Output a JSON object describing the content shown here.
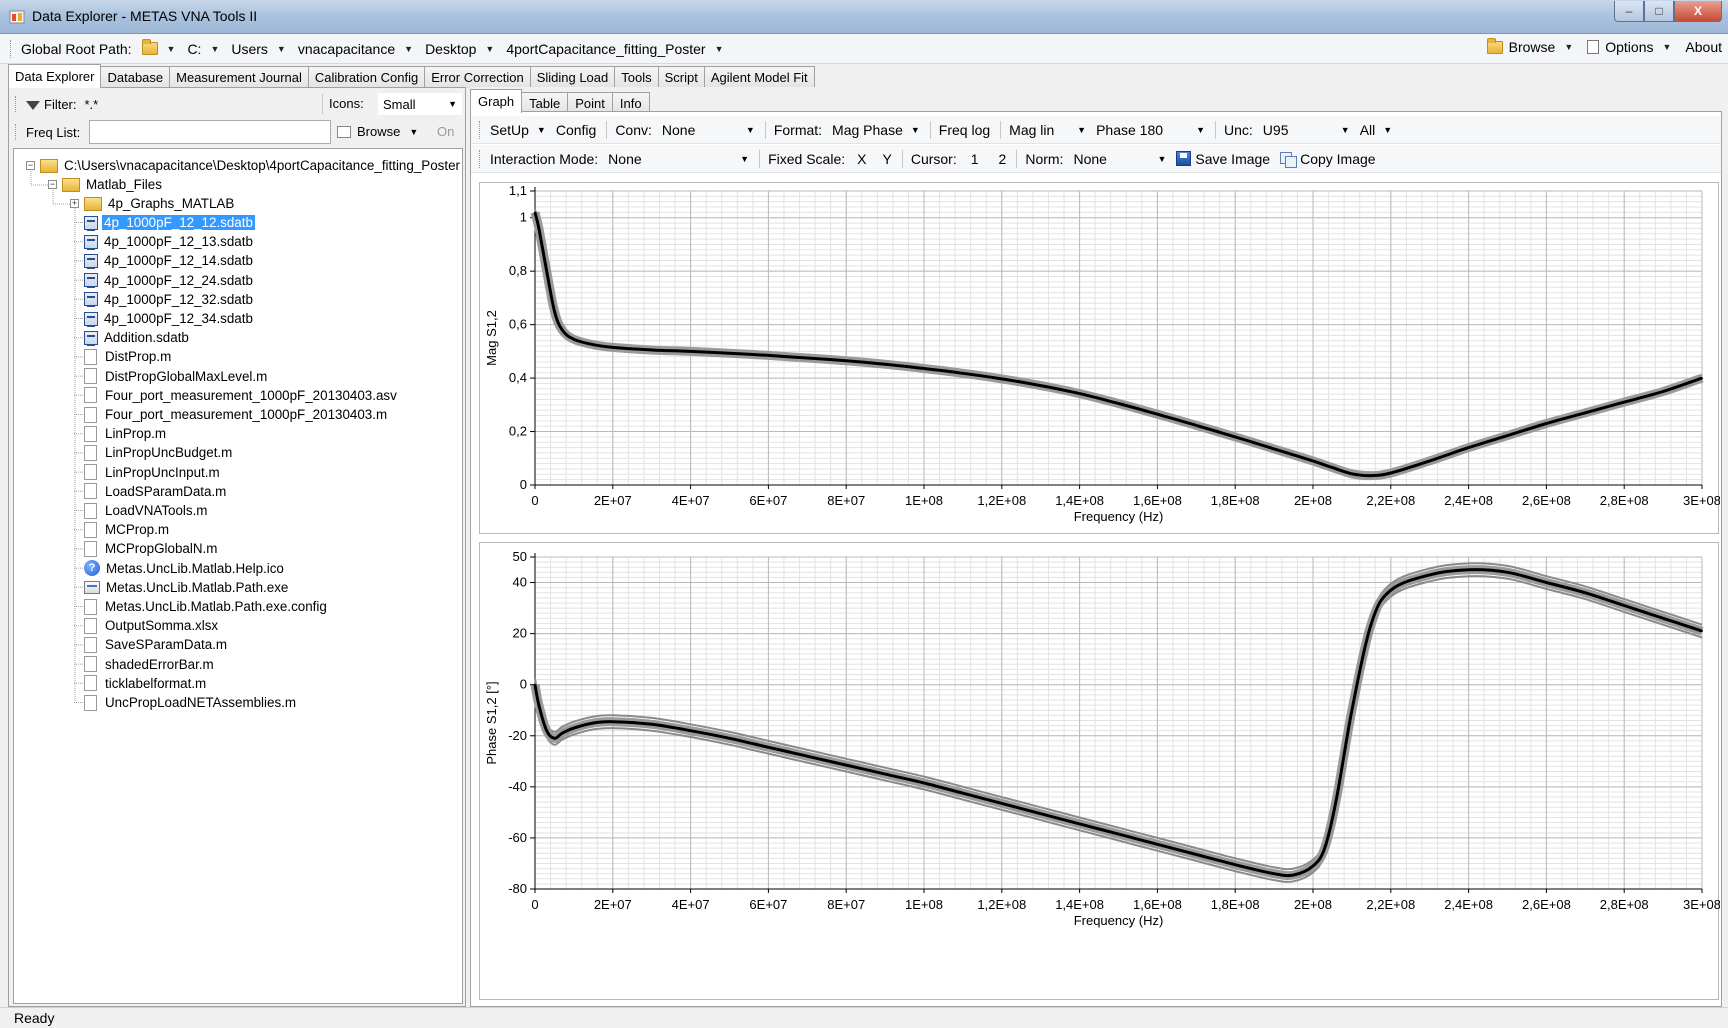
{
  "window": {
    "title": "Data Explorer - METAS VNA Tools II",
    "min": "–",
    "max": "□",
    "close": "X"
  },
  "pathbar": {
    "label": "Global Root Path:",
    "segments": [
      "C:",
      "Users",
      "vnacapacitance",
      "Desktop",
      "4portCapacitance_fitting_Poster"
    ],
    "browse": "Browse",
    "options": "Options",
    "about": "About"
  },
  "main_tabs": [
    "Data Explorer",
    "Database",
    "Measurement Journal",
    "Calibration Config",
    "Error Correction",
    "Sliding Load",
    "Tools",
    "Script",
    "Agilent Model Fit"
  ],
  "left": {
    "filter_label": "Filter:",
    "filter_value": "*.*",
    "icons_label": "Icons:",
    "icons_value": "Small",
    "freq_label": "Freq List:",
    "freq_value": "",
    "browse": "Browse",
    "on": "On"
  },
  "tree": {
    "root": "C:\\Users\\vnacapacitance\\Desktop\\4portCapacitance_fitting_Poster",
    "folder": "Matlab_Files",
    "subfolder": "4p_Graphs_MATLAB",
    "files": [
      {
        "name": "4p_1000pF_12_12.sdatb",
        "icon": "sdatb",
        "selected": true
      },
      {
        "name": "4p_1000pF_12_13.sdatb",
        "icon": "sdatb"
      },
      {
        "name": "4p_1000pF_12_14.sdatb",
        "icon": "sdatb"
      },
      {
        "name": "4p_1000pF_12_24.sdatb",
        "icon": "sdatb"
      },
      {
        "name": "4p_1000pF_12_32.sdatb",
        "icon": "sdatb"
      },
      {
        "name": "4p_1000pF_12_34.sdatb",
        "icon": "sdatb"
      },
      {
        "name": "Addition.sdatb",
        "icon": "sdatb"
      },
      {
        "name": "DistProp.m",
        "icon": "doc"
      },
      {
        "name": "DistPropGlobalMaxLevel.m",
        "icon": "doc"
      },
      {
        "name": "Four_port_measurement_1000pF_20130403.asv",
        "icon": "doc"
      },
      {
        "name": "Four_port_measurement_1000pF_20130403.m",
        "icon": "doc"
      },
      {
        "name": "LinProp.m",
        "icon": "doc"
      },
      {
        "name": "LinPropUncBudget.m",
        "icon": "doc"
      },
      {
        "name": "LinPropUncInput.m",
        "icon": "doc"
      },
      {
        "name": "LoadSParamData.m",
        "icon": "doc"
      },
      {
        "name": "LoadVNATools.m",
        "icon": "doc"
      },
      {
        "name": "MCProp.m",
        "icon": "doc"
      },
      {
        "name": "MCPropGlobalN.m",
        "icon": "doc"
      },
      {
        "name": "Metas.UncLib.Matlab.Help.ico",
        "icon": "help"
      },
      {
        "name": "Metas.UncLib.Matlab.Path.exe",
        "icon": "exe"
      },
      {
        "name": "Metas.UncLib.Matlab.Path.exe.config",
        "icon": "doc"
      },
      {
        "name": "OutputSomma.xlsx",
        "icon": "doc"
      },
      {
        "name": "SaveSParamData.m",
        "icon": "doc"
      },
      {
        "name": "shadedErrorBar.m",
        "icon": "doc"
      },
      {
        "name": "ticklabelformat.m",
        "icon": "doc"
      },
      {
        "name": "UncPropLoadNETAssemblies.m",
        "icon": "doc"
      }
    ]
  },
  "sub_tabs": [
    "Graph",
    "Table",
    "Point",
    "Info"
  ],
  "toolbar1": {
    "setup": "SetUp",
    "config": "Config",
    "conv_label": "Conv:",
    "conv_value": "None",
    "format_label": "Format:",
    "format_value": "Mag Phase",
    "freq": "Freq log",
    "mag": "Mag lin",
    "phase": "Phase 180",
    "unc_label": "Unc:",
    "unc_value": "U95",
    "all": "All"
  },
  "toolbar2": {
    "mode_label": "Interaction Mode:",
    "mode_value": "None",
    "fixed_label": "Fixed Scale:",
    "x": "X",
    "y": "Y",
    "cursor_label": "Cursor:",
    "c1": "1",
    "c2": "2",
    "norm_label": "Norm:",
    "norm_value": "None",
    "save": "Save Image",
    "copy": "Copy Image"
  },
  "chart_data": [
    {
      "type": "line",
      "xlabel": "Frequency (Hz)",
      "ylabel": "Mag S1,2",
      "xlim": [
        0,
        300000000
      ],
      "ylim": [
        0,
        1.1
      ],
      "xticks": [
        "0",
        "2E+07",
        "4E+07",
        "6E+07",
        "8E+07",
        "1E+08",
        "1,2E+08",
        "1,4E+08",
        "1,6E+08",
        "1,8E+08",
        "2E+08",
        "2,2E+08",
        "2,4E+08",
        "2,6E+08",
        "2,8E+08",
        "3E+08"
      ],
      "yticks": [
        "0",
        "0,2",
        "0,4",
        "0,6",
        "0,8",
        "1",
        "1,1"
      ],
      "ytick_values": [
        0,
        0.2,
        0.4,
        0.6,
        0.8,
        1.0,
        1.1
      ],
      "grid": true,
      "uncertainty_band": 0.012,
      "x": [
        0,
        1000000,
        3000000,
        5000000,
        7000000,
        10000000,
        15000000,
        20000000,
        30000000,
        40000000,
        50000000,
        60000000,
        70000000,
        80000000,
        90000000,
        100000000,
        110000000,
        120000000,
        130000000,
        140000000,
        150000000,
        160000000,
        170000000,
        180000000,
        190000000,
        200000000,
        205000000,
        210000000,
        215000000,
        220000000,
        230000000,
        240000000,
        250000000,
        260000000,
        270000000,
        280000000,
        290000000,
        300000000
      ],
      "y": [
        1.02,
        0.96,
        0.8,
        0.65,
        0.58,
        0.545,
        0.525,
        0.515,
        0.505,
        0.5,
        0.493,
        0.485,
        0.475,
        0.465,
        0.452,
        0.436,
        0.418,
        0.397,
        0.372,
        0.342,
        0.305,
        0.265,
        0.223,
        0.18,
        0.135,
        0.09,
        0.065,
        0.042,
        0.035,
        0.045,
        0.09,
        0.14,
        0.185,
        0.23,
        0.27,
        0.31,
        0.35,
        0.4
      ]
    },
    {
      "type": "line",
      "xlabel": "Frequency (Hz)",
      "ylabel": "Phase S1,2 [°]",
      "xlim": [
        0,
        300000000
      ],
      "ylim": [
        -80,
        50
      ],
      "xticks": [
        "0",
        "2E+07",
        "4E+07",
        "6E+07",
        "8E+07",
        "1E+08",
        "1,2E+08",
        "1,4E+08",
        "1,6E+08",
        "1,8E+08",
        "2E+08",
        "2,2E+08",
        "2,4E+08",
        "2,6E+08",
        "2,8E+08",
        "3E+08"
      ],
      "yticks": [
        "-80",
        "-60",
        "-40",
        "-20",
        "0",
        "20",
        "40",
        "50"
      ],
      "ytick_values": [
        -80,
        -60,
        -40,
        -20,
        0,
        20,
        40,
        50
      ],
      "grid": true,
      "uncertainty_band": 2.5,
      "x": [
        0,
        1000000,
        3000000,
        5000000,
        7000000,
        10000000,
        15000000,
        20000000,
        30000000,
        40000000,
        50000000,
        60000000,
        70000000,
        80000000,
        90000000,
        100000000,
        110000000,
        120000000,
        130000000,
        140000000,
        150000000,
        160000000,
        170000000,
        180000000,
        190000000,
        195000000,
        200000000,
        203000000,
        206000000,
        210000000,
        215000000,
        220000000,
        230000000,
        240000000,
        250000000,
        260000000,
        270000000,
        280000000,
        290000000,
        300000000
      ],
      "y": [
        0,
        -8,
        -18,
        -21,
        -19,
        -17,
        -15,
        -14.5,
        -15.5,
        -18,
        -21,
        -24.5,
        -28,
        -31.5,
        -35,
        -38.5,
        -42.5,
        -46.5,
        -50.5,
        -54.5,
        -58.5,
        -62.5,
        -66.5,
        -70.5,
        -74,
        -74.5,
        -71,
        -64,
        -45,
        -10,
        24,
        37,
        43,
        45,
        44,
        40,
        36,
        31,
        26,
        21
      ]
    }
  ],
  "status": "Ready"
}
